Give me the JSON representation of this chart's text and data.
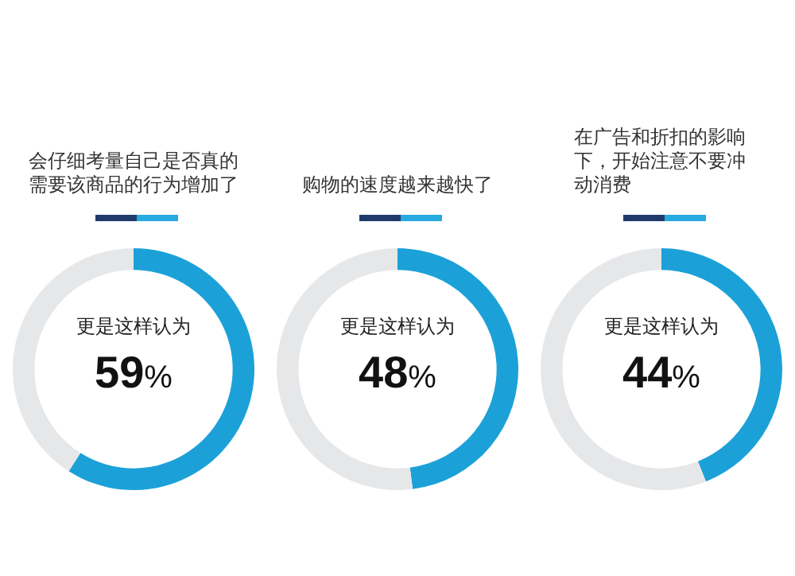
{
  "chart_data": [
    {
      "type": "donut",
      "title": "会仔细考量自己是否真的需要该商品的行为增加了",
      "categories": [
        null,
        null
      ],
      "values": [
        59,
        41
      ],
      "colors": [
        "#1ba1d8",
        "#e6e7e9"
      ],
      "annotations": [
        "更是这样认为",
        "59%"
      ]
    },
    {
      "type": "donut",
      "title": "购物的速度越来越快了",
      "categories": [
        null,
        null
      ],
      "values": [
        48,
        52
      ],
      "colors": [
        "#1ba1d8",
        "#e6e7e9"
      ],
      "annotations": [
        "更是这样认为",
        "48%"
      ]
    },
    {
      "type": "donut",
      "title": "在广告和折扣的影响下，开始注意不要冲动消费",
      "categories": [
        null,
        null
      ],
      "values": [
        44,
        56
      ],
      "colors": [
        "#1ba1d8",
        "#e6e7e9"
      ],
      "annotations": [
        "更是这样认为",
        "44%"
      ]
    }
  ]
}
